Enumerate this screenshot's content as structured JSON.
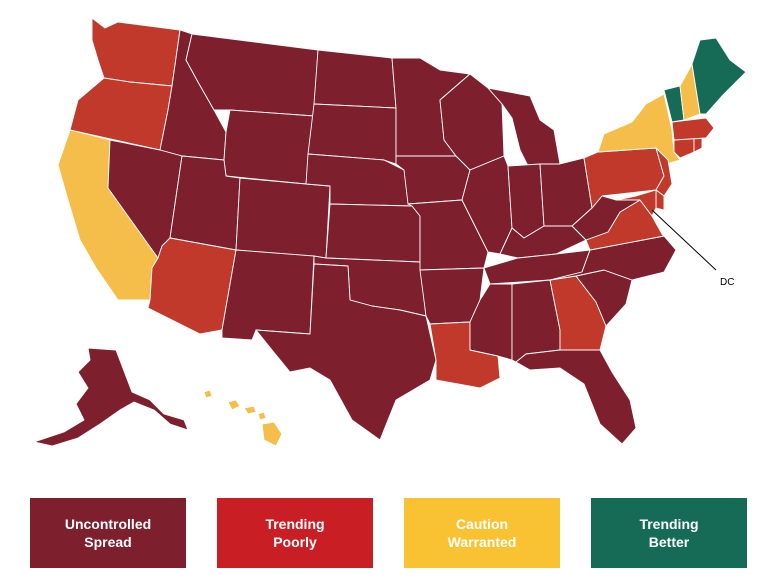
{
  "colors": {
    "uncontrolled": "#7d1f2c",
    "trending_poorly": "#c0392b",
    "caution": "#f5be4b",
    "better": "#156b55",
    "legend_trending_poorly": "#c91f24",
    "legend_caution": "#f9c233"
  },
  "annotation": {
    "dc_label": "DC"
  },
  "legend": [
    {
      "line1": "Uncontrolled",
      "line2": "Spread",
      "status": "uncontrolled"
    },
    {
      "line1": "Trending",
      "line2": "Poorly",
      "status": "trending_poorly"
    },
    {
      "line1": "Caution",
      "line2": "Warranted",
      "status": "caution"
    },
    {
      "line1": "Trending",
      "line2": "Better",
      "status": "better"
    }
  ],
  "states": {
    "WA": "trending_poorly",
    "OR": "trending_poorly",
    "CA": "caution",
    "ID": "uncontrolled",
    "NV": "uncontrolled",
    "MT": "uncontrolled",
    "WY": "uncontrolled",
    "UT": "uncontrolled",
    "AZ": "trending_poorly",
    "CO": "uncontrolled",
    "NM": "uncontrolled",
    "ND": "uncontrolled",
    "SD": "uncontrolled",
    "NE": "uncontrolled",
    "KS": "uncontrolled",
    "OK": "uncontrolled",
    "TX": "uncontrolled",
    "MN": "uncontrolled",
    "IA": "uncontrolled",
    "MO": "uncontrolled",
    "AR": "uncontrolled",
    "LA": "trending_poorly",
    "WI": "uncontrolled",
    "IL": "uncontrolled",
    "MI": "uncontrolled",
    "IN": "uncontrolled",
    "OH": "uncontrolled",
    "KY": "uncontrolled",
    "TN": "uncontrolled",
    "MS": "uncontrolled",
    "AL": "uncontrolled",
    "GA": "trending_poorly",
    "FL": "uncontrolled",
    "SC": "uncontrolled",
    "NC": "uncontrolled",
    "VA": "trending_poorly",
    "WV": "uncontrolled",
    "PA": "trending_poorly",
    "NY": "caution",
    "NJ": "trending_poorly",
    "DE": "trending_poorly",
    "MD": "trending_poorly",
    "CT": "trending_poorly",
    "RI": "trending_poorly",
    "MA": "trending_poorly",
    "VT": "better",
    "NH": "caution",
    "ME": "better",
    "AK": "uncontrolled",
    "HI": "caution"
  }
}
